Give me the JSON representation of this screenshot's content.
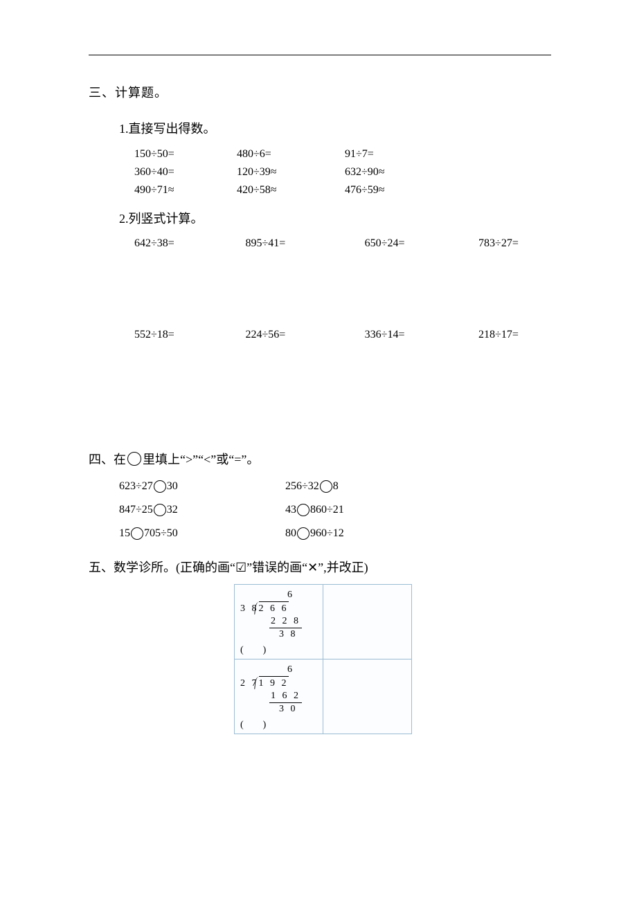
{
  "section3": {
    "title": "三、计算题。",
    "sub1": {
      "title": "1.直接写出得数。",
      "rows": [
        [
          "150÷50=",
          "480÷6=",
          "91÷7="
        ],
        [
          "360÷40=",
          "120÷39≈",
          "632÷90≈"
        ],
        [
          "490÷71≈",
          "420÷58≈",
          "476÷59≈"
        ]
      ]
    },
    "sub2": {
      "title": "2.列竖式计算。",
      "rows": [
        [
          "642÷38=",
          "895÷41=",
          "650÷24=",
          "783÷27="
        ],
        [
          "552÷18=",
          "224÷56=",
          "336÷14=",
          "218÷17="
        ]
      ]
    }
  },
  "section4": {
    "title_prefix": "四、在",
    "title_suffix": "里填上“>”“<”或“=”。",
    "rows": [
      {
        "a": [
          "623÷27",
          "30"
        ],
        "b": [
          "256÷32",
          "8"
        ]
      },
      {
        "a": [
          "847÷25",
          "32"
        ],
        "b": [
          "43",
          "860÷21"
        ]
      },
      {
        "a": [
          "15",
          "705÷50"
        ],
        "b": [
          "80",
          "960÷12"
        ]
      }
    ]
  },
  "section5": {
    "title": "五、数学诊所。(正确的画“☑”错误的画“✕”,并改正)",
    "items": [
      {
        "quotient": "6",
        "divisor": "3 8",
        "dividend": "2 6 6",
        "sub": "2 2 8",
        "remainder": "3 8",
        "paren": "(　　)"
      },
      {
        "quotient": "6",
        "divisor": "2 7",
        "dividend": "1 9 2",
        "sub": "1 6 2",
        "remainder": "3 0",
        "paren": "(　　)"
      }
    ]
  }
}
